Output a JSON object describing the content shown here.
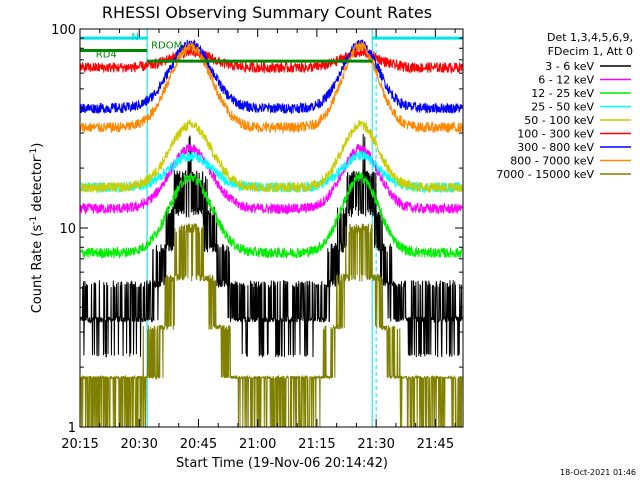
{
  "chart_data": {
    "type": "line",
    "title": "RHESSI Observing Summary Count Rates",
    "xlabel": "Start Time (19-Nov-06 20:14:42)",
    "ylabel": "Count Rate (s⁻¹ detector⁻¹)",
    "ylabel_parts": [
      "Count Rate (s",
      "-1",
      " detector",
      "-1",
      ")"
    ],
    "yscale": "log",
    "ylim": [
      1,
      100
    ],
    "xlim_min": [
      15,
      112
    ],
    "x_tick_labels": [
      "20:15",
      "20:30",
      "20:45",
      "21:00",
      "21:15",
      "21:30",
      "21:45"
    ],
    "x_ticks_min": [
      15,
      30,
      45,
      60,
      75,
      90,
      105
    ],
    "y_tick_labels": [
      "1",
      "10",
      "100"
    ],
    "legend_header": [
      "Det 1,3,4,5,6,9,",
      "FDecim 1, Att 0"
    ],
    "timestamp": "18-Oct-2021 01:46",
    "annotations": [
      {
        "text": "N",
        "color": "#00cccc"
      },
      {
        "text": "RDOM",
        "color": "#008800"
      },
      {
        "text": "RD4",
        "color": "#008800"
      }
    ],
    "day_night_boundaries_min": [
      15,
      32,
      89,
      112
    ],
    "saa_dashed_min": [
      32,
      90,
      112
    ],
    "flag_bars": [
      {
        "name": "night-bar",
        "color": "#00e5e5",
        "y": 90,
        "segments_min": [
          [
            15,
            32
          ],
          [
            89,
            112
          ]
        ]
      },
      {
        "name": "decim-bar",
        "color": "#008800",
        "y": 78,
        "segments_min": [
          [
            15,
            32
          ]
        ]
      },
      {
        "name": "rdom-bar",
        "color": "#008800",
        "y": 69,
        "segments_min": [
          [
            32,
            89
          ]
        ]
      }
    ],
    "series": [
      {
        "name": "3 - 6 keV",
        "color": "#000000",
        "base": 3.6,
        "peak": 17.5
      },
      {
        "name": "6 - 12 keV",
        "color": "#ff00ff",
        "base": 12.5,
        "peak": 25
      },
      {
        "name": "12 - 25 keV",
        "color": "#00ee00",
        "base": 7.5,
        "peak": 18
      },
      {
        "name": "25 - 50 keV",
        "color": "#00ffff",
        "base": 16,
        "peak": 23
      },
      {
        "name": "50 - 100 keV",
        "color": "#cccc00",
        "base": 16,
        "peak": 33
      },
      {
        "name": "100 - 300 keV",
        "color": "#ff0000",
        "base": 64,
        "peak": 76
      },
      {
        "name": "300 - 800 keV",
        "color": "#0000ff",
        "base": 40,
        "peak": 84
      },
      {
        "name": "800 - 7000 keV",
        "color": "#ff8800",
        "base": 32,
        "peak": 82
      },
      {
        "name": "7000 - 15000 keV",
        "color": "#808000",
        "base": 1.5,
        "peak": 9
      }
    ]
  }
}
